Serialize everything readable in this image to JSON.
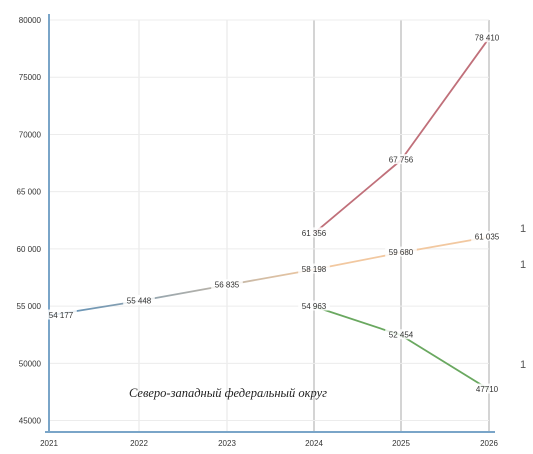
{
  "chart_data": {
    "type": "line",
    "title": "",
    "xlabel": "",
    "ylabel": "",
    "annotation": "Северо-западный федеральный округ",
    "x": [
      "2021",
      "2022",
      "2023",
      "2024",
      "2025",
      "2026"
    ],
    "ylim": [
      46000,
      80000
    ],
    "yticks": [
      {
        "value": 80000,
        "label": "80000"
      },
      {
        "value": 75000,
        "label": "75000"
      },
      {
        "value": 70000,
        "label": "70000"
      },
      {
        "value": 65000,
        "label": "65 000"
      },
      {
        "value": 60000,
        "label": "60 000"
      },
      {
        "value": 55000,
        "label": "55 000"
      },
      {
        "value": 50000,
        "label": "50000"
      },
      {
        "value": 45000,
        "label": "45000"
      }
    ],
    "grid": true,
    "legend": "none",
    "series": [
      {
        "id": "history",
        "color": "#5b8fb8",
        "gradient_to": "#f0c8a0",
        "points": [
          {
            "x": "2021",
            "y": 54177,
            "label": "54 177"
          },
          {
            "x": "2022",
            "y": 55448,
            "label": "55 448"
          },
          {
            "x": "2023",
            "y": 56835,
            "label": "56 835"
          },
          {
            "x": "2024",
            "y": 58198,
            "label": "58 198"
          }
        ]
      },
      {
        "id": "base-forecast",
        "color": "#f2c8a0",
        "points": [
          {
            "x": "2024",
            "y": 58198,
            "label": ""
          },
          {
            "x": "2025",
            "y": 59680,
            "label": "59 680"
          },
          {
            "x": "2026",
            "y": 61035,
            "label": "61 035"
          }
        ]
      },
      {
        "id": "optimistic-forecast",
        "color": "#c0707a",
        "points": [
          {
            "x": "2024",
            "y": 61356,
            "label": "61 356"
          },
          {
            "x": "2025",
            "y": 67756,
            "label": "67 756"
          },
          {
            "x": "2026",
            "y": 78410,
            "label": "78 410"
          }
        ]
      },
      {
        "id": "pessimistic-forecast",
        "color": "#6aa860",
        "points": [
          {
            "x": "2024",
            "y": 54963,
            "label": "54 963"
          },
          {
            "x": "2025",
            "y": 52454,
            "label": "52 454"
          },
          {
            "x": "2026",
            "y": 47710,
            "label": "47710"
          }
        ]
      }
    ],
    "edge_marks": [
      "1",
      "1",
      "1"
    ]
  }
}
